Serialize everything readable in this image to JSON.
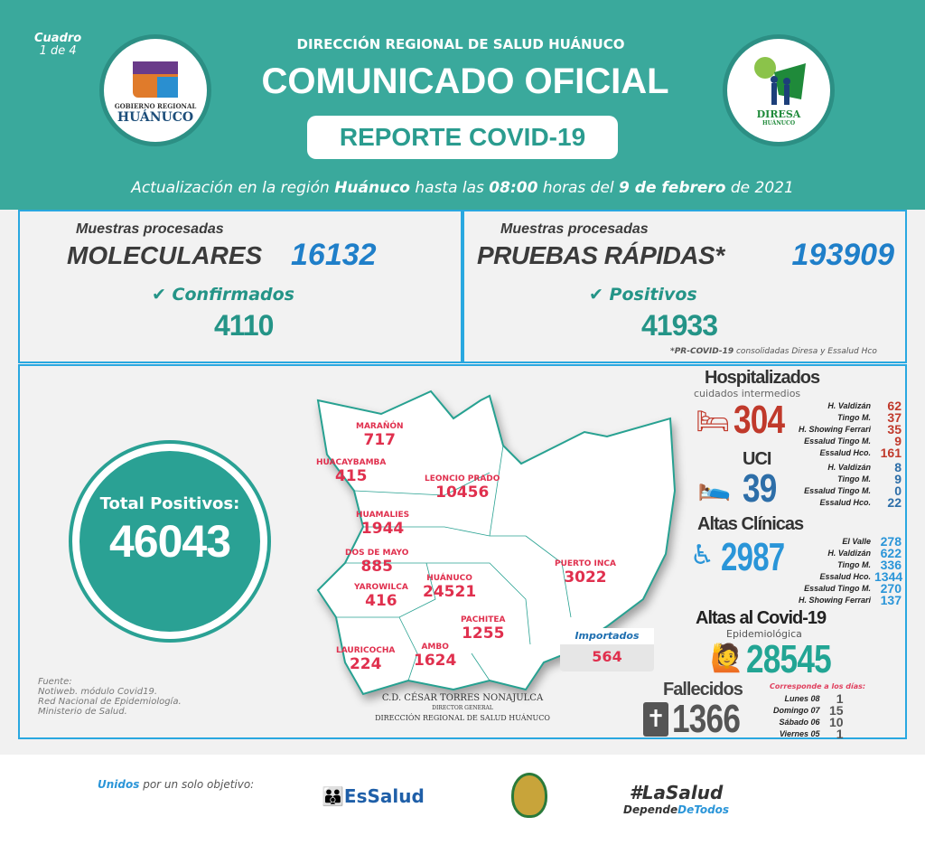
{
  "header": {
    "cuadro": "Cuadro",
    "cuadro_num": "1 de 4",
    "org": "DIRECCIÓN REGIONAL DE SALUD HUÁNUCO",
    "title": "COMUNICADO OFICIAL",
    "subtitle": "REPORTE COVID-19",
    "logo_left": "GOBIERNO REGIONAL HUÁNUCO",
    "logo_right": "DIRESA HUÁNUCO",
    "update_pre": "Actualización en la región ",
    "update_region": "Huánuco",
    "update_mid": " hasta las ",
    "update_time": "08:00",
    "update_mid2": " horas del ",
    "update_date": "9 de febrero",
    "update_year": " de 2021"
  },
  "moleculares": {
    "label": "Muestras procesadas",
    "title": "MOLECULARES",
    "value": "16132",
    "sub": "Confirmados",
    "sub_value": "4110"
  },
  "rapidas": {
    "label": "Muestras procesadas",
    "title": "PRUEBAS RÁPIDAS*",
    "value": "193909",
    "sub": "Positivos",
    "sub_value": "41933",
    "note_bold": "*PR-COVID-19",
    "note": " consolidadas Diresa y Essalud Hco"
  },
  "total": {
    "label": "Total Positivos:",
    "value": "46043"
  },
  "provinces": [
    {
      "name": "MARAÑÓN",
      "value": "717"
    },
    {
      "name": "HUACAYBAMBA",
      "value": "415"
    },
    {
      "name": "LEONCIO PRADO",
      "value": "10456"
    },
    {
      "name": "HUAMALIES",
      "value": "1944"
    },
    {
      "name": "DOS DE MAYO",
      "value": "885"
    },
    {
      "name": "YAROWILCA",
      "value": "416"
    },
    {
      "name": "HUÁNUCO",
      "value": "24521"
    },
    {
      "name": "PUERTO INCA",
      "value": "3022"
    },
    {
      "name": "PACHITEA",
      "value": "1255"
    },
    {
      "name": "LAURICOCHA",
      "value": "224"
    },
    {
      "name": "AMBO",
      "value": "1624"
    }
  ],
  "importados": {
    "label": "Importados",
    "value": "564"
  },
  "hospitalizados": {
    "title": "Hospitalizados",
    "sub": "cuidados intermedios",
    "value": "304",
    "color": "#c0392b",
    "rows": [
      {
        "name": "H. Valdizán",
        "value": "62"
      },
      {
        "name": "Tingo M.",
        "value": "37"
      },
      {
        "name": "H. Showing Ferrari",
        "value": "35"
      },
      {
        "name": "Essalud Tingo M.",
        "value": "9"
      },
      {
        "name": "Essalud Hco.",
        "value": "161"
      }
    ]
  },
  "uci": {
    "title": "UCI",
    "value": "39",
    "color": "#2d6ea8",
    "rows": [
      {
        "name": "H. Valdizán",
        "value": "8"
      },
      {
        "name": "Tingo M.",
        "value": "9"
      },
      {
        "name": "Essalud Tingo M.",
        "value": "0"
      },
      {
        "name": "Essalud Hco.",
        "value": "22"
      }
    ]
  },
  "altas": {
    "title": "Altas Clínicas",
    "value": "2987",
    "color": "#2a95d8",
    "rows": [
      {
        "name": "El Valle",
        "value": "278"
      },
      {
        "name": "H. Valdizán",
        "value": "622"
      },
      {
        "name": "Tingo M.",
        "value": "336"
      },
      {
        "name": "Essalud Hco.",
        "value": "1344"
      },
      {
        "name": "Essalud Tingo M.",
        "value": "270"
      },
      {
        "name": "H. Showing Ferrari",
        "value": "137"
      }
    ]
  },
  "altas_covid": {
    "title": "Altas al Covid-19",
    "sub": "Epidemiológica",
    "value": "28545",
    "color": "#22a594"
  },
  "fallecidos": {
    "title": "Fallecidos",
    "value": "1366",
    "note": "Corresponde a los días:",
    "rows": [
      {
        "name": "Lunes 08",
        "value": "1"
      },
      {
        "name": "Domingo 07",
        "value": "15"
      },
      {
        "name": "Sábado 06",
        "value": "10"
      },
      {
        "name": "Viernes 05",
        "value": "1"
      }
    ]
  },
  "fuente": {
    "label": "Fuente:",
    "lines": [
      "Notiweb. módulo Covid19.",
      "Red Nacional de Epidemiología.",
      "Ministerio de Salud."
    ]
  },
  "firma": {
    "name": "C.D. CÉSAR TORRES NONAJULCA",
    "role": "DIRECTOR GENERAL",
    "org": "DIRECCIÓN REGIONAL DE SALUD HUÁNUCO"
  },
  "footer": {
    "unidos": "Unidos",
    "tagline": " por un solo objetivo:",
    "essalud": "EsSalud",
    "hashtag": "#LaSalud",
    "hashtag2a": "Depende",
    "hashtag2b": "DeTodos"
  }
}
